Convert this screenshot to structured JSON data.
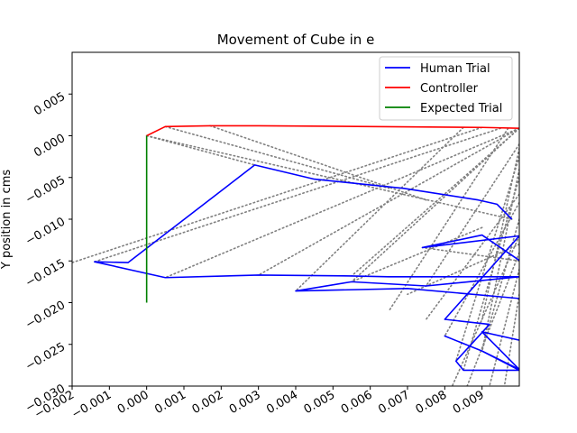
{
  "chart_data": {
    "type": "line",
    "title": "Movement of Cube in e",
    "xlabel": "",
    "ylabel": "Y position in cms",
    "xlim": [
      -0.002,
      0.01
    ],
    "ylim": [
      -0.03,
      0.01
    ],
    "x_ticks": [
      -0.002,
      -0.001,
      0.0,
      0.001,
      0.002,
      0.003,
      0.004,
      0.005,
      0.006,
      0.007,
      0.008,
      0.009
    ],
    "x_tick_labels": [
      "−0.002",
      "−0.001",
      "0.000",
      "0.001",
      "0.002",
      "0.003",
      "0.004",
      "0.005",
      "0.006",
      "0.007",
      "0.008",
      "0.009"
    ],
    "y_ticks": [
      -0.03,
      -0.025,
      -0.02,
      -0.015,
      -0.01,
      -0.005,
      0.0,
      0.005
    ],
    "y_tick_labels": [
      "−0.030",
      "−0.025",
      "−0.020",
      "−0.015",
      "−0.010",
      "−0.005",
      "0.000",
      "0.005"
    ],
    "grid": false,
    "legend_position": "top-right",
    "series": [
      {
        "name": "Human Trial",
        "color": "#0000ff",
        "style": "solid",
        "x": [
          0.0098,
          0.0094,
          0.0089,
          0.0069,
          0.0045,
          0.0029,
          0.0029,
          -0.0005,
          -0.0014,
          0.0005,
          0.003,
          0.0055,
          0.0065,
          0.01,
          0.0075,
          0.0055,
          0.004,
          0.007,
          0.01,
          0.012,
          0.009,
          0.0074,
          0.01,
          0.008,
          0.0092,
          0.0083,
          0.0085,
          0.01,
          0.009,
          0.008,
          0.009,
          0.01,
          0.009,
          0.01
        ],
        "y": [
          -0.01,
          -0.0082,
          -0.0077,
          -0.0063,
          -0.0052,
          -0.0035,
          -0.0035,
          -0.0152,
          -0.0151,
          -0.017,
          -0.0167,
          -0.0168,
          -0.0169,
          -0.0169,
          -0.018,
          -0.0175,
          -0.0186,
          -0.0183,
          -0.0195,
          -0.021,
          -0.0119,
          -0.0134,
          -0.012,
          -0.022,
          -0.0226,
          -0.027,
          -0.0281,
          -0.0281,
          -0.0258,
          -0.024,
          -0.0258,
          -0.028,
          -0.0235,
          -0.0245
        ]
      },
      {
        "name": "Controller",
        "color": "#ff0000",
        "style": "solid",
        "x": [
          0.0,
          0.0005,
          0.0017,
          0.003,
          0.006,
          0.009,
          0.01
        ],
        "y": [
          0.0,
          0.0011,
          0.0012,
          0.0012,
          0.0011,
          0.001,
          0.0009
        ]
      },
      {
        "name": "Expected Trial",
        "color": "#008000",
        "style": "solid",
        "x": [
          0.0,
          0.0
        ],
        "y": [
          0.0,
          -0.02
        ]
      }
    ],
    "correspondence_links": {
      "color": "#808080",
      "style": "dotted",
      "segments": [
        [
          [
            0.0,
            0.0
          ],
          [
            0.0029,
            -0.0035
          ]
        ],
        [
          [
            0.0,
            0.0
          ],
          [
            0.0098,
            -0.01
          ]
        ],
        [
          [
            0.0005,
            0.0011
          ],
          [
            0.0065,
            -0.0063
          ]
        ],
        [
          [
            0.0017,
            0.0012
          ],
          [
            0.0075,
            -0.0077
          ]
        ],
        [
          [
            0.01,
            0.0009
          ],
          [
            0.0005,
            -0.017
          ]
        ],
        [
          [
            0.01,
            0.0009
          ],
          [
            0.003,
            -0.0167
          ]
        ],
        [
          [
            0.0095,
            0.0009
          ],
          [
            -0.0014,
            -0.0151
          ]
        ],
        [
          [
            0.009,
            0.001
          ],
          [
            -0.002,
            -0.0152
          ]
        ],
        [
          [
            0.0085,
            0.001
          ],
          [
            0.004,
            -0.0186
          ]
        ],
        [
          [
            0.01,
            0.0009
          ],
          [
            0.0055,
            -0.0168
          ]
        ],
        [
          [
            0.0097,
            0.0009
          ],
          [
            0.0065,
            -0.021
          ]
        ],
        [
          [
            0.01,
            0.0009
          ],
          [
            0.0055,
            -0.0175
          ]
        ],
        [
          [
            0.01,
            -0.001
          ],
          [
            0.0075,
            -0.018
          ]
        ],
        [
          [
            0.01,
            -0.0015
          ],
          [
            0.009,
            -0.022
          ]
        ],
        [
          [
            0.01,
            -0.0025
          ],
          [
            0.0083,
            -0.027
          ]
        ],
        [
          [
            0.01,
            -0.004
          ],
          [
            0.009,
            -0.0258
          ]
        ],
        [
          [
            0.01,
            -0.005
          ],
          [
            0.0085,
            -0.0281
          ]
        ],
        [
          [
            0.01,
            -0.007
          ],
          [
            0.0075,
            -0.022
          ]
        ],
        [
          [
            0.01,
            -0.008
          ],
          [
            0.008,
            -0.024
          ]
        ],
        [
          [
            0.01,
            -0.01
          ],
          [
            0.009,
            -0.0258
          ]
        ],
        [
          [
            0.01,
            -0.012
          ],
          [
            0.0082,
            -0.03
          ]
        ],
        [
          [
            0.01,
            -0.014
          ],
          [
            0.0086,
            -0.03
          ]
        ],
        [
          [
            0.01,
            -0.016
          ],
          [
            0.0092,
            -0.03
          ]
        ],
        [
          [
            0.01,
            -0.019
          ],
          [
            0.0096,
            -0.03
          ]
        ],
        [
          [
            0.009,
            -0.011
          ],
          [
            0.0055,
            -0.0175
          ]
        ],
        [
          [
            0.01,
            -0.013
          ],
          [
            0.007,
            -0.019
          ]
        ],
        [
          [
            0.01,
            -0.015
          ],
          [
            0.0074,
            -0.0134
          ]
        ]
      ]
    }
  }
}
